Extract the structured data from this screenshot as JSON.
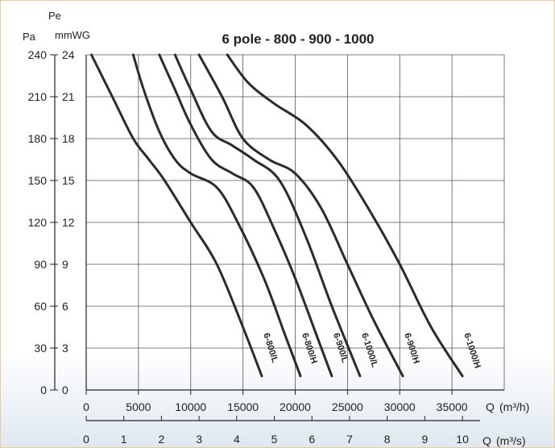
{
  "chart_data": {
    "type": "line",
    "title": "6 pole - 800 - 900 - 1000",
    "y_axis_left": {
      "unit": "Pa",
      "ticks": [
        "0",
        "30",
        "60",
        "90",
        "120",
        "150",
        "180",
        "210",
        "240"
      ],
      "ylim": [
        0,
        240
      ]
    },
    "y_axis_right": {
      "unit_line1": "Pe",
      "unit_line2": "mmWG",
      "ticks": [
        "0",
        "3",
        "6",
        "9",
        "12",
        "15",
        "18",
        "21",
        "24"
      ],
      "ylim": [
        0,
        24
      ]
    },
    "x_axis_m3h": {
      "label": "Q",
      "unit": "(m³/h)",
      "ticks": [
        "0",
        "5000",
        "10000",
        "15000",
        "20000",
        "25000",
        "30000",
        "35000"
      ],
      "xlim": [
        0,
        40000
      ]
    },
    "x_axis_m3s": {
      "label": "Q",
      "unit": "(m³/s)",
      "ticks": [
        "0",
        "1",
        "2",
        "3",
        "4",
        "5",
        "6",
        "7",
        "8",
        "9",
        "10"
      ]
    },
    "grid": true,
    "series": [
      {
        "name": "6-800/L",
        "x": [
          500,
          2500,
          4500,
          6000,
          7500,
          10000,
          12500,
          15000,
          16800
        ],
        "y": [
          240,
          210,
          180,
          165,
          150,
          120,
          90,
          45,
          10
        ]
      },
      {
        "name": "6-800/H",
        "x": [
          4500,
          5500,
          7000,
          8500,
          10000,
          12500,
          14500,
          17000,
          19000,
          20500
        ],
        "y": [
          240,
          215,
          185,
          165,
          155,
          145,
          120,
          80,
          40,
          10
        ]
      },
      {
        "name": "6-900/L",
        "x": [
          7000,
          8500,
          10000,
          12000,
          14000,
          16000,
          18000,
          20000,
          22000,
          23500
        ],
        "y": [
          240,
          215,
          190,
          165,
          155,
          145,
          115,
          80,
          40,
          10
        ]
      },
      {
        "name": "6-1000/L",
        "x": [
          8500,
          10000,
          12000,
          14000,
          16000,
          18500,
          21000,
          23500,
          26200
        ],
        "y": [
          240,
          215,
          185,
          175,
          165,
          150,
          110,
          60,
          10
        ]
      },
      {
        "name": "6-900/H",
        "x": [
          10800,
          13000,
          15000,
          17500,
          20000,
          22500,
          25000,
          27500,
          30300
        ],
        "y": [
          240,
          210,
          180,
          165,
          155,
          130,
          90,
          50,
          10
        ]
      },
      {
        "name": "6-1000/H",
        "x": [
          13500,
          15500,
          18000,
          21000,
          24000,
          27000,
          30000,
          33000,
          36000
        ],
        "y": [
          240,
          220,
          205,
          190,
          165,
          130,
          90,
          45,
          10
        ]
      }
    ]
  }
}
